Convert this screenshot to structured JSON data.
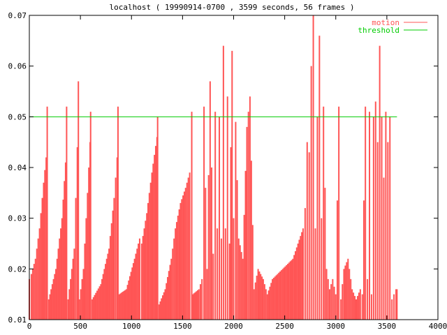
{
  "chart_data": {
    "type": "area",
    "title": "localhost ( 19990914-0700 , 3599 seconds, 56 frames )",
    "xlabel": "",
    "ylabel": "",
    "xlim": [
      0,
      4000
    ],
    "ylim": [
      0.01,
      0.07
    ],
    "x_ticks": [
      "0",
      "500",
      "1000",
      "1500",
      "2000",
      "2500",
      "3000",
      "3500",
      "4000"
    ],
    "y_ticks": [
      "0.01",
      "0.02",
      "0.03",
      "0.04",
      "0.05",
      "0.06",
      "0.07"
    ],
    "legend_position": "top-right",
    "grid": false,
    "series": [
      {
        "name": "motion",
        "color": "#ff5555",
        "style": "impulses",
        "x": [
          0,
          20,
          60,
          100,
          140,
          165,
          175,
          190,
          260,
          320,
          355,
          365,
          380,
          440,
          470,
          480,
          490,
          530,
          570,
          595,
          600,
          615,
          700,
          780,
          830,
          860,
          868,
          880,
          950,
          1030,
          1080,
          1100,
          1150,
          1200,
          1250,
          1256,
          1270,
          1330,
          1390,
          1430,
          1480,
          1530,
          1570,
          1590,
          1600,
          1660,
          1690,
          1710,
          1740,
          1770,
          1800,
          1820,
          1840,
          1860,
          1880,
          1900,
          1920,
          1940,
          1960,
          1985,
          2000,
          2020,
          2050,
          2090,
          2130,
          2160,
          2200,
          2240,
          2290,
          2330,
          2380,
          2430,
          2480,
          2530,
          2580,
          2630,
          2680,
          2700,
          2720,
          2740,
          2760,
          2780,
          2800,
          2820,
          2840,
          2860,
          2880,
          2910,
          2940,
          2970,
          3000,
          3030,
          3050,
          3080,
          3120,
          3160,
          3200,
          3240,
          3260,
          3290,
          3310,
          3330,
          3350,
          3370,
          3390,
          3410,
          3430,
          3450,
          3470,
          3490,
          3510,
          3530,
          3550,
          3570,
          3590,
          3599
        ],
        "values": [
          0.018,
          0.019,
          0.022,
          0.028,
          0.037,
          0.042,
          0.052,
          0.014,
          0.02,
          0.03,
          0.041,
          0.052,
          0.014,
          0.024,
          0.044,
          0.057,
          0.014,
          0.02,
          0.035,
          0.045,
          0.051,
          0.014,
          0.017,
          0.024,
          0.034,
          0.042,
          0.052,
          0.015,
          0.016,
          0.022,
          0.026,
          0.025,
          0.031,
          0.039,
          0.046,
          0.05,
          0.013,
          0.016,
          0.022,
          0.028,
          0.033,
          0.036,
          0.039,
          0.051,
          0.015,
          0.016,
          0.018,
          0.052,
          0.02,
          0.057,
          0.023,
          0.051,
          0.028,
          0.05,
          0.026,
          0.064,
          0.028,
          0.054,
          0.025,
          0.063,
          0.03,
          0.049,
          0.026,
          0.022,
          0.048,
          0.054,
          0.016,
          0.02,
          0.018,
          0.015,
          0.018,
          0.019,
          0.02,
          0.021,
          0.022,
          0.025,
          0.028,
          0.032,
          0.045,
          0.043,
          0.06,
          0.07,
          0.028,
          0.05,
          0.066,
          0.03,
          0.052,
          0.02,
          0.016,
          0.018,
          0.015,
          0.052,
          0.014,
          0.02,
          0.022,
          0.016,
          0.014,
          0.016,
          0.015,
          0.052,
          0.018,
          0.051,
          0.015,
          0.05,
          0.053,
          0.045,
          0.064,
          0.05,
          0.038,
          0.051,
          0.045,
          0.05,
          0.014,
          0.015,
          0.016,
          0.016
        ]
      },
      {
        "name": "threshold",
        "color": "#00cc00",
        "style": "line",
        "x": [
          0,
          3599
        ],
        "values": [
          0.05,
          0.05
        ]
      }
    ]
  }
}
